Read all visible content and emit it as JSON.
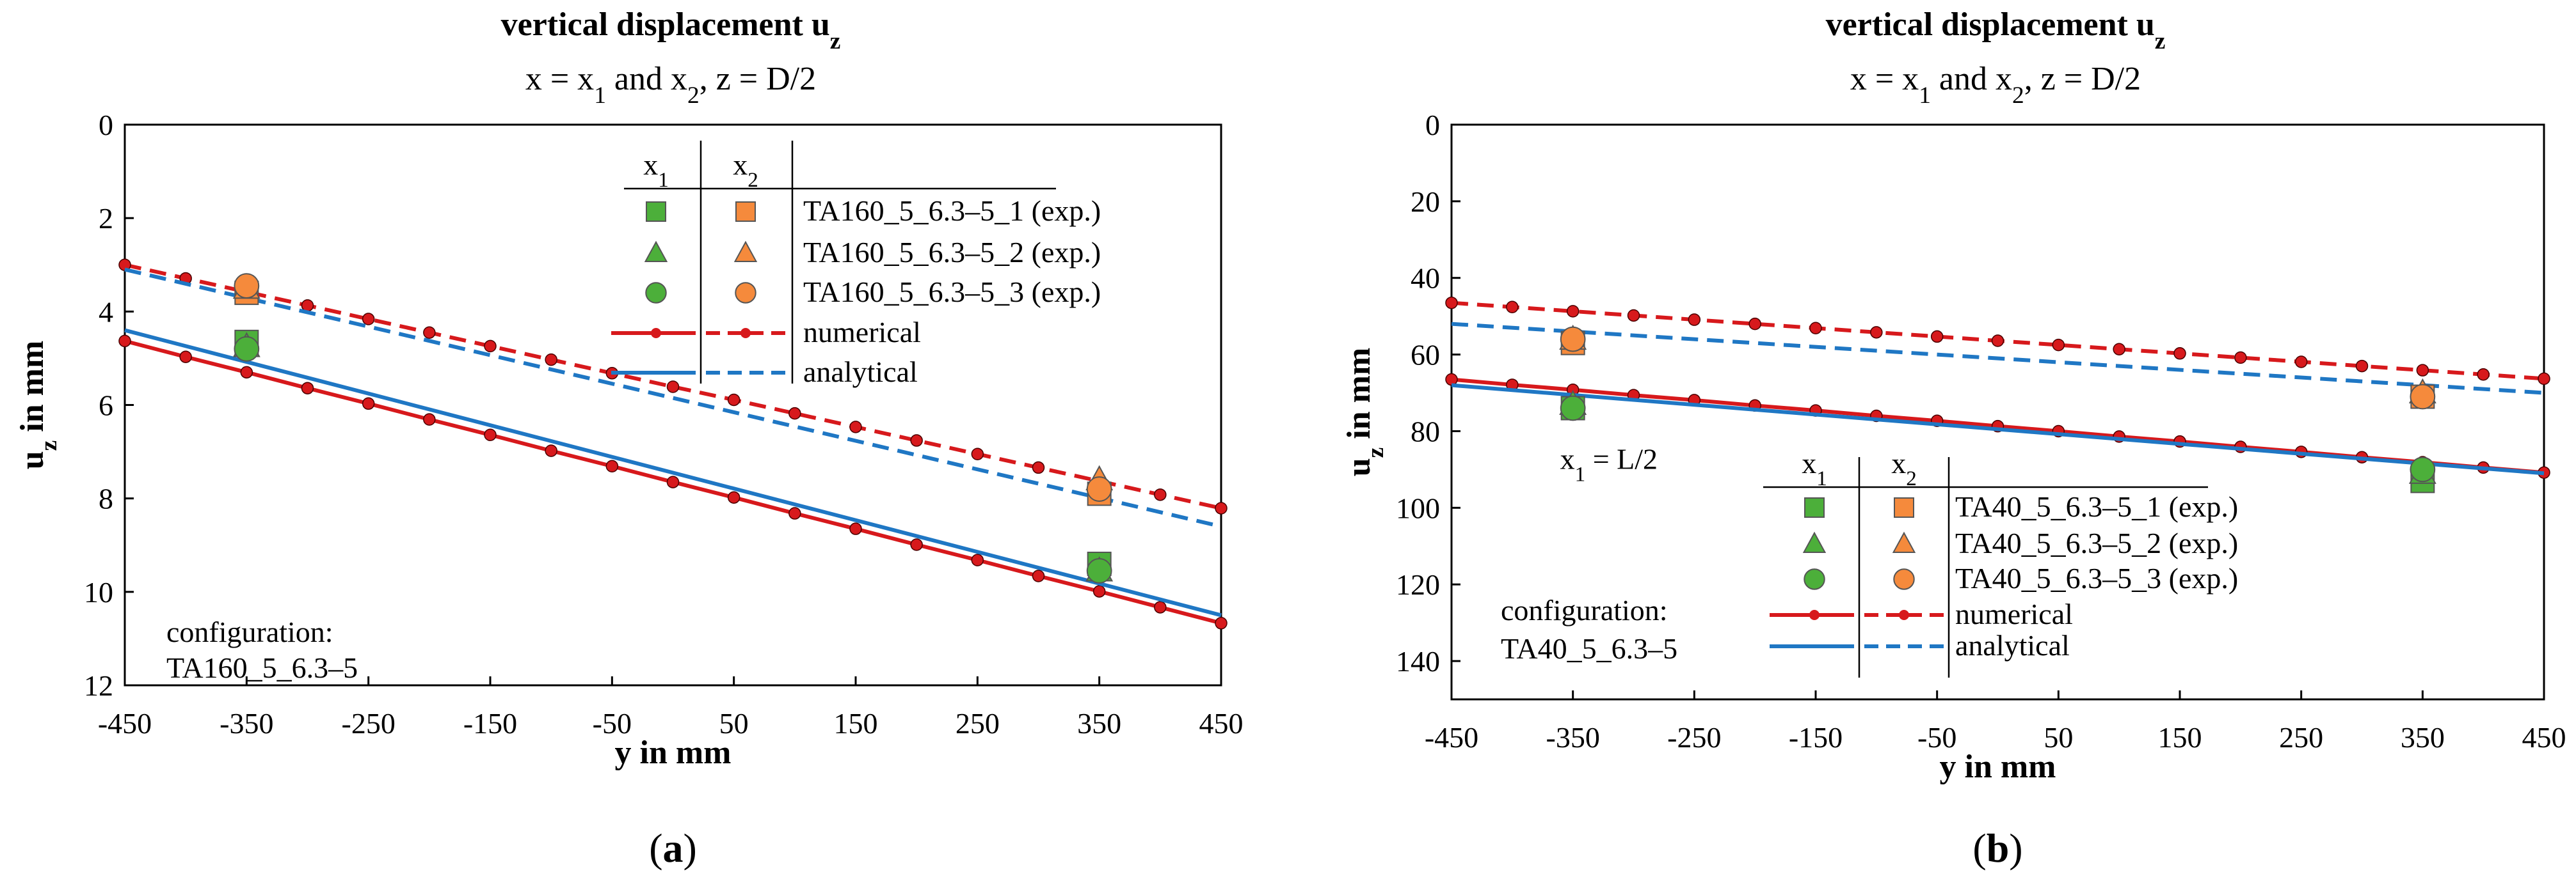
{
  "colors": {
    "numerical": "#d7191c",
    "analytical": "#1f77c4",
    "x1_marker": "#4caf3a",
    "x2_marker": "#f58a3c",
    "frame": "#000000"
  },
  "chart_data": [
    {
      "type": "line",
      "panel_label_prefix": "(",
      "panel_label_letter": "a",
      "panel_label_suffix": ")",
      "title_main": "vertical displacement u",
      "title_sub": "z",
      "subtitle_parts": [
        "x = x",
        "1",
        " and x",
        "2",
        ", z = D/2"
      ],
      "xlabel": "y in mm",
      "ylabel_main": "u",
      "ylabel_sub": "z",
      "ylabel_rest": " in mm",
      "xlim": [
        -450,
        450
      ],
      "ylim": [
        0,
        12
      ],
      "y_inverted": true,
      "x_ticks": [
        -450,
        -350,
        -250,
        -150,
        -50,
        50,
        150,
        250,
        350,
        450
      ],
      "y_ticks": [
        0,
        2,
        4,
        6,
        8,
        10,
        12
      ],
      "legend": {
        "col_x1": "x",
        "col_x1_sub": "1",
        "col_x2": "x",
        "col_x2_sub": "2",
        "entries": [
          "TA160_5_6.3–5_1 (exp.)",
          "TA160_5_6.3–5_2 (exp.)",
          "TA160_5_6.3–5_3 (exp.)",
          "numerical",
          "analytical"
        ]
      },
      "annotations": [
        "configuration:",
        "TA160_5_6.3–5"
      ],
      "series": [
        {
          "name": "numerical x1",
          "style": "solid-dots",
          "color": "numerical",
          "x": [
            -450,
            -400,
            -350,
            -300,
            -250,
            -200,
            -150,
            -100,
            -50,
            0,
            50,
            100,
            150,
            200,
            250,
            300,
            350,
            400,
            450
          ],
          "y": [
            4.63,
            4.97,
            5.3,
            5.64,
            5.97,
            6.31,
            6.64,
            6.98,
            7.31,
            7.65,
            7.98,
            8.32,
            8.65,
            8.99,
            9.32,
            9.66,
            9.99,
            10.33,
            10.67
          ]
        },
        {
          "name": "numerical x2",
          "style": "dashed-dots",
          "color": "numerical",
          "x": [
            -450,
            -400,
            -350,
            -300,
            -250,
            -200,
            -150,
            -100,
            -50,
            0,
            50,
            100,
            150,
            200,
            250,
            300,
            350,
            400,
            450
          ],
          "y": [
            3.0,
            3.29,
            3.58,
            3.87,
            4.16,
            4.45,
            4.74,
            5.03,
            5.32,
            5.61,
            5.89,
            6.18,
            6.47,
            6.76,
            7.05,
            7.34,
            7.63,
            7.92,
            8.21
          ]
        },
        {
          "name": "analytical x1",
          "style": "solid",
          "color": "analytical",
          "x": [
            -450,
            450
          ],
          "y": [
            4.4,
            10.5
          ]
        },
        {
          "name": "analytical x2",
          "style": "dashed",
          "color": "analytical",
          "x": [
            -450,
            450
          ],
          "y": [
            3.1,
            8.6
          ]
        }
      ],
      "experiments": [
        {
          "shape": "square",
          "color": "x1_marker",
          "x": [
            -350,
            350
          ],
          "y": [
            4.65,
            9.4
          ]
        },
        {
          "shape": "triangle",
          "color": "x1_marker",
          "x": [
            -350,
            350
          ],
          "y": [
            4.75,
            9.55
          ]
        },
        {
          "shape": "circle",
          "color": "x1_marker",
          "x": [
            -350,
            350
          ],
          "y": [
            4.8,
            9.55
          ]
        },
        {
          "shape": "square",
          "color": "x2_marker",
          "x": [
            -350,
            350
          ],
          "y": [
            3.6,
            7.9
          ]
        },
        {
          "shape": "triangle",
          "color": "x2_marker",
          "x": [
            -350,
            350
          ],
          "y": [
            3.5,
            7.6
          ]
        },
        {
          "shape": "circle",
          "color": "x2_marker",
          "x": [
            -350,
            350
          ],
          "y": [
            3.45,
            7.8
          ]
        }
      ]
    },
    {
      "type": "line",
      "panel_label_prefix": "(",
      "panel_label_letter": "b",
      "panel_label_suffix": ")",
      "title_main": "vertical displacement u",
      "title_sub": "z",
      "subtitle_parts": [
        "x = x",
        "1",
        " and x",
        "2",
        ", z = D/2"
      ],
      "xlabel": "y in mm",
      "ylabel_main": "u",
      "ylabel_sub": "z",
      "ylabel_rest": " in mm",
      "xlim": [
        -450,
        450
      ],
      "ylim": [
        0,
        150
      ],
      "y_inverted": true,
      "x_ticks": [
        -450,
        -350,
        -250,
        -150,
        -50,
        50,
        150,
        250,
        350,
        450
      ],
      "y_ticks": [
        0,
        20,
        40,
        60,
        80,
        100,
        120,
        140
      ],
      "legend": {
        "col_x1": "x",
        "col_x1_sub": "1",
        "col_x2": "x",
        "col_x2_sub": "2",
        "entries": [
          "TA40_5_6.3–5_1 (exp.)",
          "TA40_5_6.3–5_2 (exp.)",
          "TA40_5_6.3–5_3 (exp.)",
          "numerical",
          "analytical"
        ]
      },
      "annotations": [
        "configuration:",
        "TA40_5_6.3–5"
      ],
      "point_note_parts": [
        "x",
        "1",
        " = L/2"
      ],
      "series": [
        {
          "name": "numerical x1",
          "style": "solid-dots",
          "color": "numerical",
          "x": [
            -450,
            -400,
            -350,
            -300,
            -250,
            -200,
            -150,
            -100,
            -50,
            0,
            50,
            100,
            150,
            200,
            250,
            300,
            350,
            400,
            450
          ],
          "y": [
            66.5,
            67.9,
            69.2,
            70.6,
            71.9,
            73.3,
            74.6,
            76.0,
            77.3,
            78.7,
            80.0,
            81.4,
            82.7,
            84.1,
            85.4,
            86.8,
            88.1,
            89.5,
            90.8
          ]
        },
        {
          "name": "numerical x2",
          "style": "dashed-dots",
          "color": "numerical",
          "x": [
            -450,
            -400,
            -350,
            -300,
            -250,
            -200,
            -150,
            -100,
            -50,
            0,
            50,
            100,
            150,
            200,
            250,
            300,
            350,
            400,
            450
          ],
          "y": [
            46.5,
            47.6,
            48.7,
            49.8,
            50.9,
            52.0,
            53.1,
            54.2,
            55.3,
            56.4,
            57.5,
            58.6,
            59.7,
            60.8,
            61.9,
            63.0,
            64.1,
            65.2,
            66.3
          ]
        },
        {
          "name": "analytical x1",
          "style": "solid",
          "color": "analytical",
          "x": [
            -450,
            450
          ],
          "y": [
            68.0,
            91.0
          ]
        },
        {
          "name": "analytical x2",
          "style": "dashed",
          "color": "analytical",
          "x": [
            -450,
            450
          ],
          "y": [
            52.0,
            70.0
          ]
        }
      ],
      "experiments": [
        {
          "shape": "square",
          "color": "x1_marker",
          "x": [
            -350,
            350
          ],
          "y": [
            74.0,
            93.0
          ]
        },
        {
          "shape": "triangle",
          "color": "x1_marker",
          "x": [
            -350,
            350
          ],
          "y": [
            73.0,
            91.0
          ]
        },
        {
          "shape": "circle",
          "color": "x1_marker",
          "x": [
            -350,
            350
          ],
          "y": [
            74.0,
            90.0
          ]
        },
        {
          "shape": "square",
          "color": "x2_marker",
          "x": [
            -350,
            350
          ],
          "y": [
            57.0,
            71.0
          ]
        },
        {
          "shape": "triangle",
          "color": "x2_marker",
          "x": [
            -350,
            350
          ],
          "y": [
            56.0,
            70.0
          ]
        },
        {
          "shape": "circle",
          "color": "x2_marker",
          "x": [
            -350,
            350
          ],
          "y": [
            56.0,
            71.0
          ]
        }
      ]
    }
  ]
}
